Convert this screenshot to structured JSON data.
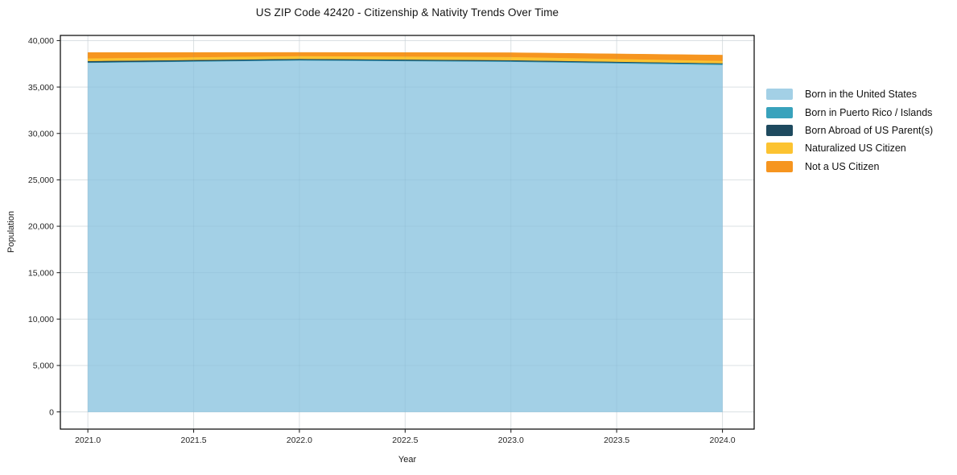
{
  "page": {
    "background": "#ffffff"
  },
  "chart_data": {
    "type": "area",
    "stacked": true,
    "title": "US ZIP Code 42420 - Citizenship & Nativity Trends Over Time",
    "xlabel": "Year",
    "ylabel": "Population",
    "x": [
      2021,
      2022,
      2023,
      2024
    ],
    "series": [
      {
        "name": "Born in the United States",
        "color": "#a3d0e6",
        "values": [
          37620,
          37870,
          37730,
          37390
        ]
      },
      {
        "name": "Born in Puerto Rico / Islands",
        "color": "#38a2bc",
        "values": [
          50,
          60,
          60,
          110
        ]
      },
      {
        "name": "Born Abroad of US Parent(s)",
        "color": "#1e4a5f",
        "values": [
          140,
          110,
          110,
          70
        ]
      },
      {
        "name": "Naturalized US Citizen",
        "color": "#fcc331",
        "values": [
          290,
          310,
          350,
          260
        ]
      },
      {
        "name": "Not a US Citizen",
        "color": "#f6951f",
        "values": [
          620,
          380,
          450,
          610
        ]
      }
    ],
    "totals": [
      38720,
      38730,
      38700,
      38440
    ],
    "xlim": [
      2020.87,
      2024.15
    ],
    "ylim": [
      -1855,
      40560
    ],
    "xticks": {
      "values": [
        2021.0,
        2021.5,
        2022.0,
        2022.5,
        2023.0,
        2023.5,
        2024.0
      ],
      "labels": [
        "2021.0",
        "2021.5",
        "2022.0",
        "2022.5",
        "2023.0",
        "2023.5",
        "2024.0"
      ]
    },
    "yticks": {
      "values": [
        0,
        5000,
        10000,
        15000,
        20000,
        25000,
        30000,
        35000,
        40000
      ],
      "labels": [
        "0",
        "5,000",
        "10,000",
        "15,000",
        "20,000",
        "25,000",
        "30,000",
        "35,000",
        "40,000"
      ]
    },
    "grid": true,
    "legend_position": "right-outside"
  },
  "colors": {
    "grid": "#ebebeb",
    "grid_overlay": "rgba(110,145,170,0.12)",
    "spine": "#000000",
    "tick": "#262626",
    "background": "#ffffff"
  }
}
